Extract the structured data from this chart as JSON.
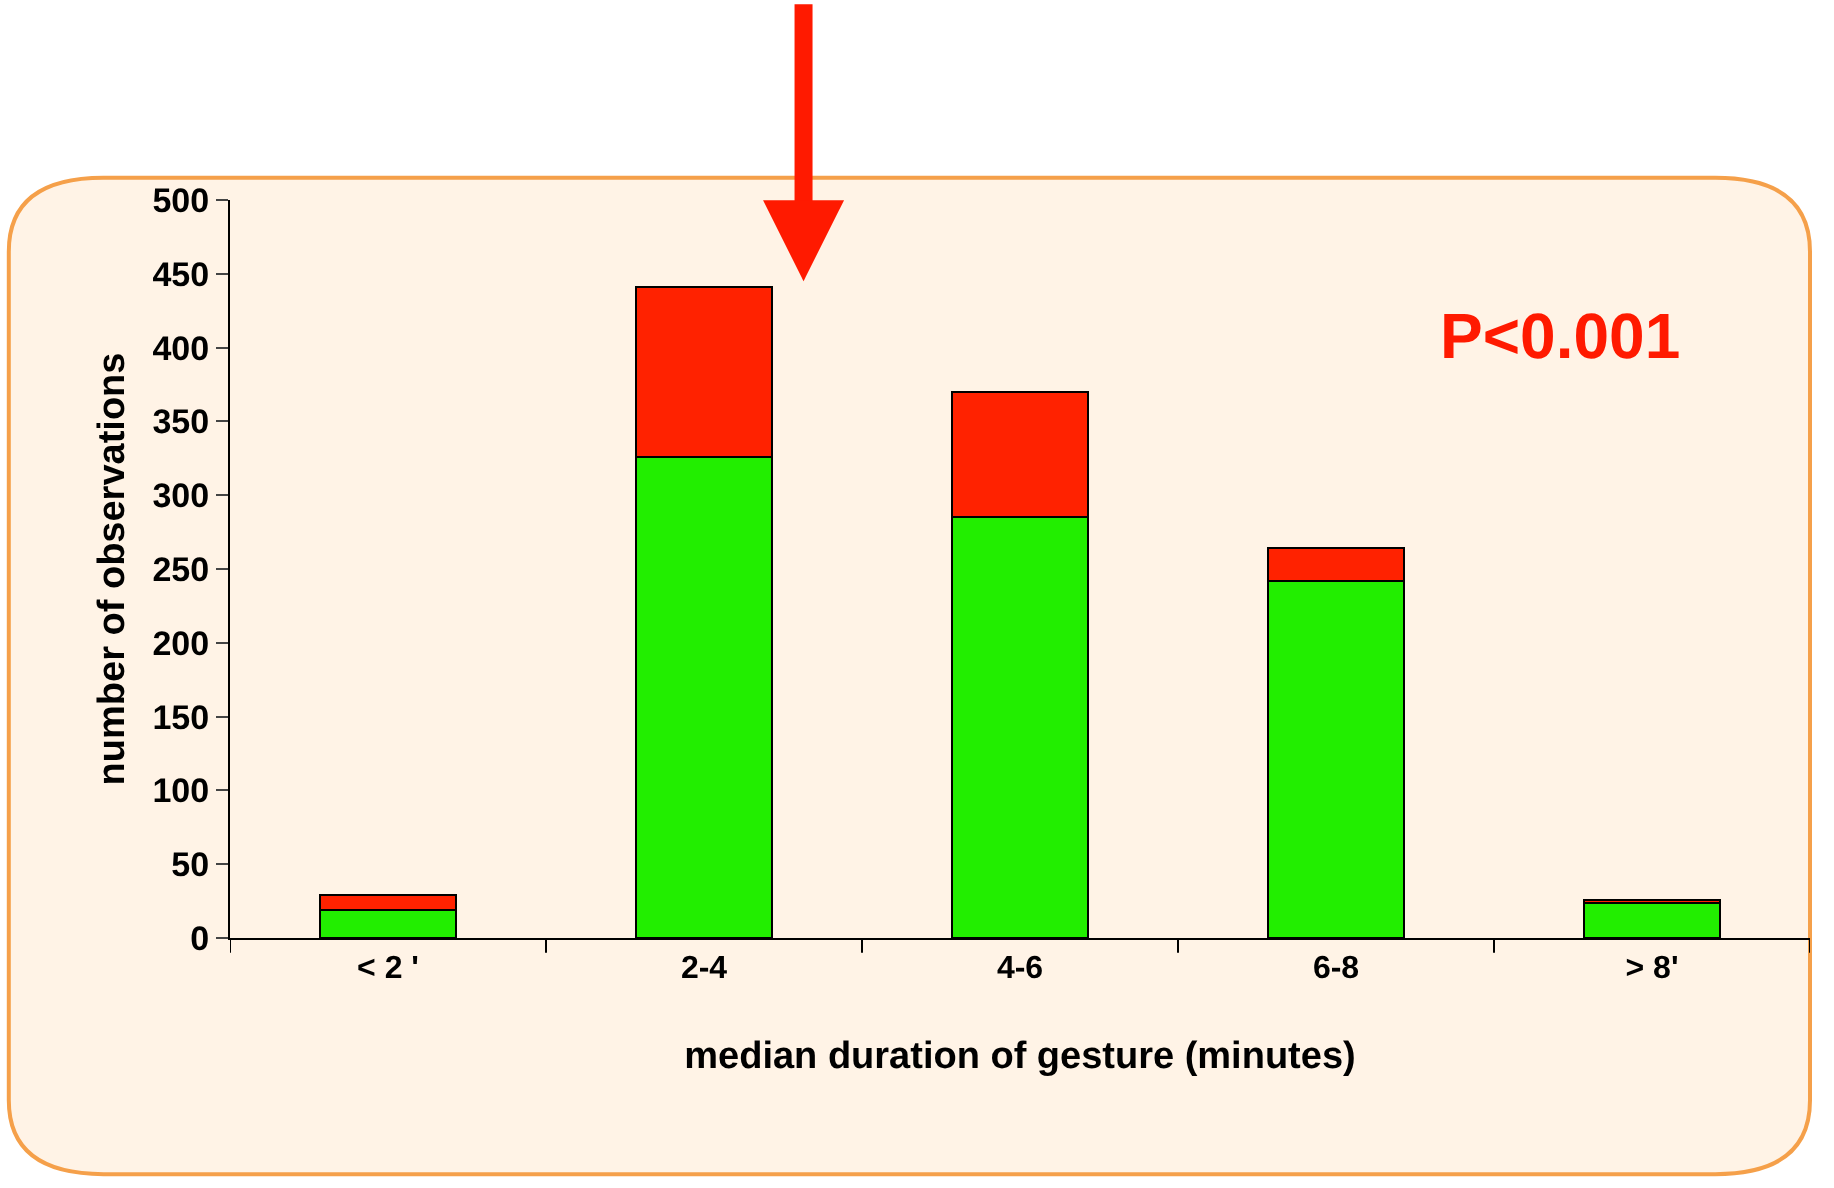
{
  "chart_data": {
    "type": "bar",
    "stacked": true,
    "categories": [
      "< 2 '",
      "2-4",
      "4-6",
      "6-8",
      "> 8'"
    ],
    "series": [
      {
        "color": "#22ee00",
        "values": [
          19,
          326,
          285,
          242,
          24
        ]
      },
      {
        "color": "#ff2200",
        "values": [
          10,
          115,
          85,
          22,
          2
        ]
      }
    ],
    "xlabel": "median duration of gesture (minutes)",
    "ylabel": "number of observations",
    "ylim": [
      0,
      500
    ],
    "yticks": [
      0,
      50,
      100,
      150,
      200,
      250,
      300,
      350,
      400,
      450,
      500
    ],
    "annotations": [
      "P<0.001"
    ],
    "grid": false,
    "legend": false
  }
}
